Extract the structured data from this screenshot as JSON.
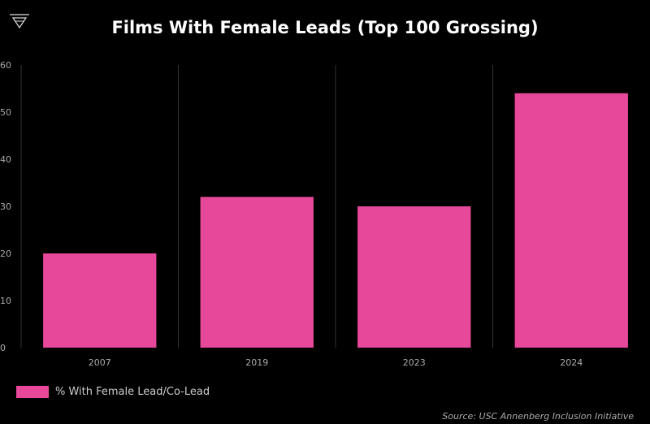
{
  "chart_data": {
    "type": "bar",
    "title": "Films With Female Leads (Top 100 Grossing)",
    "categories": [
      "2007",
      "2019",
      "2023",
      "2024"
    ],
    "series": [
      {
        "name": "% With Female Lead/Co-Lead",
        "values": [
          20,
          32,
          30,
          54
        ]
      }
    ],
    "yticks": [
      0,
      10,
      20,
      30,
      40,
      50,
      60
    ],
    "ylim": [
      0,
      60
    ],
    "xlabel": "",
    "ylabel": "",
    "grid": "vertical separators",
    "legend_position": "bottom-left",
    "source": "Source: USC Annenberg Inclusion Initiative"
  },
  "colors": {
    "bar": "#e8489a",
    "background": "#000000",
    "separator": "#333333",
    "logo": "#dddddd"
  },
  "logo_icon": "triangle-logo-icon"
}
